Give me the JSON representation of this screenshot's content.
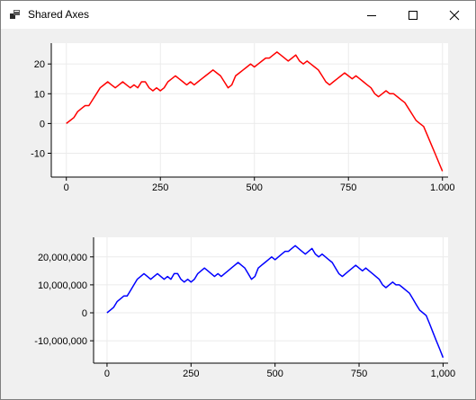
{
  "window": {
    "title": "Shared Axes"
  },
  "icons": {
    "app": "app-icon",
    "minimize": "minimize-icon",
    "maximize": "maximize-icon",
    "close": "close-icon"
  },
  "colors": {
    "top_series": "#ff0000",
    "bottom_series": "#0000ff"
  },
  "chart_data": [
    {
      "type": "line",
      "title": "",
      "xlabel": "",
      "ylabel": "",
      "xlim": [
        -40,
        1015
      ],
      "ylim": [
        -18,
        27
      ],
      "xticks": [
        0,
        250,
        500,
        750,
        1000
      ],
      "xtick_labels": [
        "0",
        "250",
        "500",
        "750",
        "1,000"
      ],
      "yticks": [
        20,
        10,
        0,
        -10
      ],
      "ytick_labels": [
        "20",
        "10",
        "0",
        "-10"
      ],
      "grid": true,
      "series": [
        {
          "color": "#ff0000",
          "x": [
            0,
            10,
            20,
            30,
            40,
            50,
            60,
            70,
            80,
            90,
            100,
            110,
            120,
            130,
            140,
            150,
            160,
            170,
            180,
            190,
            200,
            210,
            220,
            230,
            240,
            250,
            260,
            270,
            280,
            290,
            300,
            310,
            320,
            330,
            340,
            350,
            360,
            370,
            380,
            390,
            400,
            410,
            420,
            430,
            440,
            450,
            460,
            470,
            480,
            490,
            500,
            510,
            520,
            530,
            540,
            550,
            560,
            570,
            580,
            590,
            600,
            610,
            620,
            630,
            640,
            650,
            660,
            670,
            680,
            690,
            700,
            710,
            720,
            730,
            740,
            750,
            760,
            770,
            780,
            790,
            800,
            810,
            820,
            830,
            840,
            850,
            860,
            870,
            880,
            890,
            900,
            910,
            920,
            930,
            940,
            950,
            960,
            970,
            980,
            990,
            1000
          ],
          "y": [
            0,
            1,
            2,
            4,
            5,
            6,
            6,
            8,
            10,
            12,
            13,
            14,
            13,
            12,
            13,
            14,
            13,
            12,
            13,
            12,
            14,
            14,
            12,
            11,
            12,
            11,
            12,
            14,
            15,
            16,
            15,
            14,
            13,
            14,
            13,
            14,
            15,
            16,
            17,
            18,
            17,
            16,
            14,
            12,
            13,
            16,
            17,
            18,
            19,
            20,
            19,
            20,
            21,
            22,
            22,
            23,
            24,
            23,
            22,
            21,
            22,
            23,
            21,
            20,
            21,
            20,
            19,
            18,
            16,
            14,
            13,
            14,
            15,
            16,
            17,
            16,
            15,
            16,
            15,
            14,
            13,
            12,
            10,
            9,
            10,
            11,
            10,
            10,
            9,
            8,
            7,
            5,
            3,
            1,
            0,
            -1,
            -4,
            -7,
            -10,
            -13,
            -16
          ]
        }
      ]
    },
    {
      "type": "line",
      "title": "",
      "xlabel": "",
      "ylabel": "",
      "xlim": [
        -40,
        1015
      ],
      "ylim": [
        -18000000,
        27000000
      ],
      "xticks": [
        0,
        250,
        500,
        750,
        1000
      ],
      "xtick_labels": [
        "0",
        "250",
        "500",
        "750",
        "1,000"
      ],
      "yticks": [
        20000000,
        10000000,
        0,
        -10000000
      ],
      "ytick_labels": [
        "20,000,000",
        "10,000,000",
        "0",
        "-10,000,000"
      ],
      "grid": true,
      "series": [
        {
          "color": "#0000ff",
          "x": [
            0,
            10,
            20,
            30,
            40,
            50,
            60,
            70,
            80,
            90,
            100,
            110,
            120,
            130,
            140,
            150,
            160,
            170,
            180,
            190,
            200,
            210,
            220,
            230,
            240,
            250,
            260,
            270,
            280,
            290,
            300,
            310,
            320,
            330,
            340,
            350,
            360,
            370,
            380,
            390,
            400,
            410,
            420,
            430,
            440,
            450,
            460,
            470,
            480,
            490,
            500,
            510,
            520,
            530,
            540,
            550,
            560,
            570,
            580,
            590,
            600,
            610,
            620,
            630,
            640,
            650,
            660,
            670,
            680,
            690,
            700,
            710,
            720,
            730,
            740,
            750,
            760,
            770,
            780,
            790,
            800,
            810,
            820,
            830,
            840,
            850,
            860,
            870,
            880,
            890,
            900,
            910,
            920,
            930,
            940,
            950,
            960,
            970,
            980,
            990,
            1000
          ],
          "y": [
            0,
            1000000,
            2000000,
            4000000,
            5000000,
            6000000,
            6000000,
            8000000,
            10000000,
            12000000,
            13000000,
            14000000,
            13000000,
            12000000,
            13000000,
            14000000,
            13000000,
            12000000,
            13000000,
            12000000,
            14000000,
            14000000,
            12000000,
            11000000,
            12000000,
            11000000,
            12000000,
            14000000,
            15000000,
            16000000,
            15000000,
            14000000,
            13000000,
            14000000,
            13000000,
            14000000,
            15000000,
            16000000,
            17000000,
            18000000,
            17000000,
            16000000,
            14000000,
            12000000,
            13000000,
            16000000,
            17000000,
            18000000,
            19000000,
            20000000,
            19000000,
            20000000,
            21000000,
            22000000,
            22000000,
            23000000,
            24000000,
            23000000,
            22000000,
            21000000,
            22000000,
            23000000,
            21000000,
            20000000,
            21000000,
            20000000,
            19000000,
            18000000,
            16000000,
            14000000,
            13000000,
            14000000,
            15000000,
            16000000,
            17000000,
            16000000,
            15000000,
            16000000,
            15000000,
            14000000,
            13000000,
            12000000,
            10000000,
            9000000,
            10000000,
            11000000,
            10000000,
            10000000,
            9000000,
            8000000,
            7000000,
            5000000,
            3000000,
            1000000,
            0,
            -1000000,
            -4000000,
            -7000000,
            -10000000,
            -13000000,
            -16000000
          ]
        }
      ]
    }
  ]
}
